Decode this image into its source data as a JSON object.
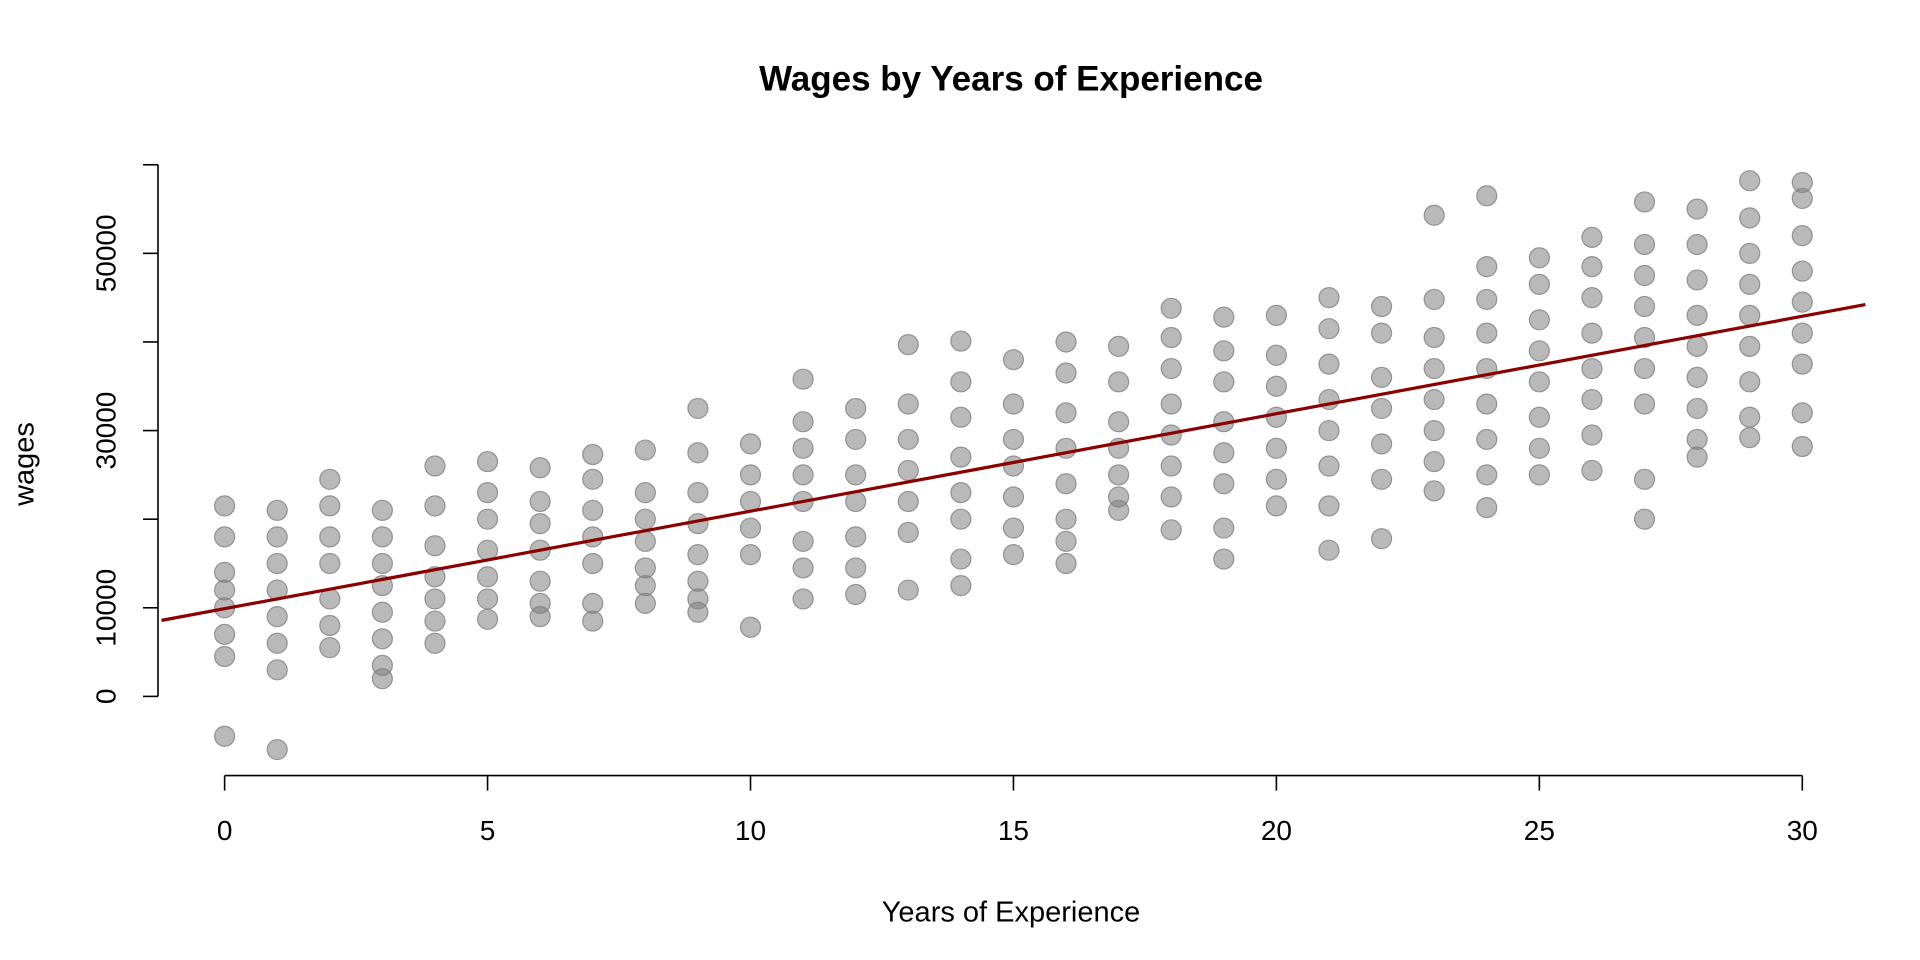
{
  "chart_data": {
    "type": "scatter",
    "title": "Wages by Years of Experience",
    "x_label": "Years of Experience",
    "y_label": "wages",
    "xlim": [
      -1.2,
      31.2
    ],
    "ylim": [
      -8600,
      61100
    ],
    "xticks": [
      0,
      5,
      10,
      15,
      20,
      25,
      30
    ],
    "yticks": [
      0,
      10000,
      30000,
      50000
    ],
    "yticks_unlabeled": [
      20000,
      40000,
      60000
    ],
    "point_color": "#808080",
    "fit": {
      "intercept": 9900,
      "slope": 1100,
      "color": "#8b0000"
    },
    "x": [
      0,
      0,
      0,
      0,
      0,
      0,
      0,
      0,
      1,
      1,
      1,
      1,
      1,
      1,
      1,
      1,
      2,
      2,
      2,
      2,
      2,
      2,
      2,
      3,
      3,
      3,
      3,
      3,
      3,
      3,
      3,
      4,
      4,
      4,
      4,
      4,
      4,
      4,
      5,
      5,
      5,
      5,
      5,
      5,
      5,
      6,
      6,
      6,
      6,
      6,
      6,
      6,
      7,
      7,
      7,
      7,
      7,
      7,
      7,
      8,
      8,
      8,
      8,
      8,
      8,
      8,
      9,
      9,
      9,
      9,
      9,
      9,
      9,
      9,
      10,
      10,
      10,
      10,
      10,
      10,
      11,
      11,
      11,
      11,
      11,
      11,
      11,
      11,
      12,
      12,
      12,
      12,
      12,
      12,
      12,
      13,
      13,
      13,
      13,
      13,
      13,
      13,
      14,
      14,
      14,
      14,
      14,
      14,
      14,
      14,
      15,
      15,
      15,
      15,
      15,
      15,
      15,
      16,
      16,
      16,
      16,
      16,
      16,
      16,
      16,
      17,
      17,
      17,
      17,
      17,
      17,
      17,
      18,
      18,
      18,
      18,
      18,
      18,
      18,
      18,
      19,
      19,
      19,
      19,
      19,
      19,
      19,
      19,
      20,
      20,
      20,
      20,
      20,
      20,
      20,
      21,
      21,
      21,
      21,
      21,
      21,
      21,
      21,
      22,
      22,
      22,
      22,
      22,
      22,
      22,
      23,
      23,
      23,
      23,
      23,
      23,
      23,
      23,
      24,
      24,
      24,
      24,
      24,
      24,
      24,
      24,
      24,
      25,
      25,
      25,
      25,
      25,
      25,
      25,
      25,
      26,
      26,
      26,
      26,
      26,
      26,
      26,
      26,
      27,
      27,
      27,
      27,
      27,
      27,
      27,
      27,
      27,
      28,
      28,
      28,
      28,
      28,
      28,
      28,
      28,
      28,
      29,
      29,
      29,
      29,
      29,
      29,
      29,
      29,
      29,
      30,
      30,
      30,
      30,
      30,
      30,
      30,
      30,
      30
    ],
    "y": [
      21500,
      18000,
      14000,
      12000,
      10000,
      7000,
      4500,
      -4500,
      21000,
      18000,
      15000,
      12000,
      9000,
      6000,
      3000,
      -6000,
      24500,
      21500,
      18000,
      15000,
      11000,
      8000,
      5500,
      21000,
      18000,
      15000,
      12500,
      9500,
      6500,
      3500,
      2000,
      26000,
      21500,
      17000,
      13500,
      11000,
      8500,
      6000,
      26500,
      23000,
      20000,
      16500,
      13500,
      11000,
      8700,
      25800,
      22000,
      19500,
      16500,
      13000,
      10500,
      9000,
      27300,
      24500,
      21000,
      18000,
      15000,
      10500,
      8500,
      27800,
      23000,
      20000,
      17500,
      14500,
      12500,
      10500,
      32500,
      27500,
      23000,
      19500,
      16000,
      13000,
      11000,
      9500,
      28500,
      25000,
      22000,
      19000,
      16000,
      7800,
      35800,
      31000,
      28000,
      25000,
      22000,
      17500,
      14500,
      11000,
      32500,
      29000,
      25000,
      22000,
      18000,
      14500,
      11500,
      39700,
      33000,
      29000,
      25500,
      22000,
      18500,
      12000,
      40100,
      35500,
      31500,
      27000,
      23000,
      20000,
      15500,
      12500,
      38000,
      33000,
      29000,
      26000,
      22500,
      19000,
      16000,
      40000,
      36500,
      32000,
      28000,
      24000,
      20000,
      17500,
      15000,
      39500,
      35500,
      31000,
      28000,
      25000,
      22500,
      21000,
      43800,
      40500,
      37000,
      33000,
      29500,
      26000,
      22500,
      18800,
      42800,
      39000,
      35500,
      31000,
      27500,
      24000,
      19000,
      15500,
      43000,
      38500,
      35000,
      31500,
      28000,
      24500,
      21500,
      45000,
      41500,
      37500,
      33500,
      30000,
      26000,
      21500,
      16500,
      44000,
      41000,
      36000,
      32500,
      28500,
      24500,
      17800,
      54300,
      44800,
      40500,
      37000,
      33500,
      30000,
      26500,
      23200,
      56500,
      48500,
      44800,
      41000,
      37000,
      33000,
      29000,
      25000,
      21300,
      49500,
      46500,
      42500,
      39000,
      35500,
      31500,
      28000,
      25000,
      51800,
      48500,
      45000,
      41000,
      37000,
      33500,
      29500,
      25500,
      55800,
      51000,
      47500,
      44000,
      40500,
      37000,
      33000,
      24500,
      20000,
      55000,
      51000,
      47000,
      43000,
      39500,
      36000,
      32500,
      29000,
      27000,
      58200,
      54000,
      50000,
      46500,
      43000,
      39500,
      35500,
      31500,
      29200,
      58000,
      56200,
      52000,
      48000,
      44500,
      41000,
      37500,
      32000,
      28200
    ]
  }
}
